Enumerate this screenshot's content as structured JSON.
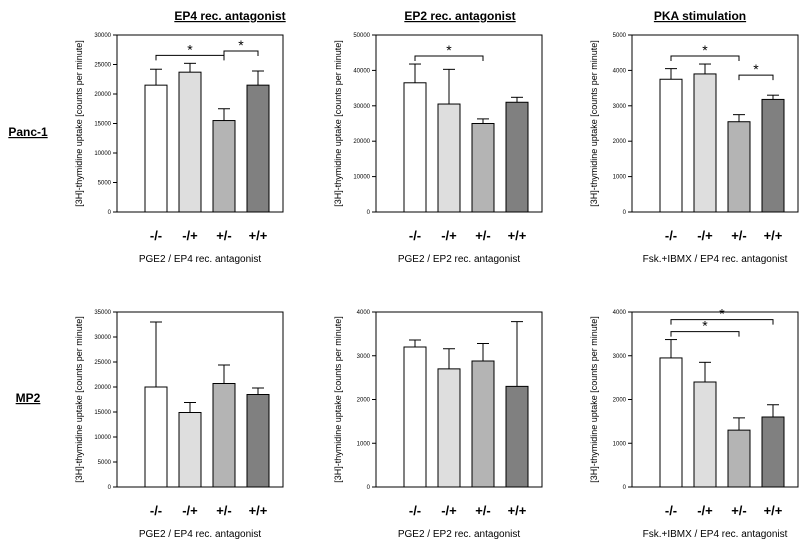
{
  "column_titles": [
    "EP4 rec. antagonist",
    "EP2 rec. antagonist",
    "PKA stimulation"
  ],
  "row_labels": [
    "Panc-1",
    "MP2"
  ],
  "chart_data": [
    {
      "type": "bar",
      "id": "panc1-ep4",
      "categories": [
        "-/-",
        "-/+",
        "+/-",
        "+/+"
      ],
      "values": [
        21500,
        23700,
        15500,
        21500
      ],
      "errors": [
        2700,
        1500,
        2000,
        2400
      ],
      "bar_colors": [
        "#ffffff",
        "#dedede",
        "#b4b4b4",
        "#808080"
      ],
      "ylabel": "[3H]-thymidine uptake [counts per minute]",
      "xlabel": "PGE2 / EP4 rec. antagonist",
      "ylim": [
        0,
        30000
      ],
      "yticks": [
        "0",
        "5000",
        "10000",
        "15000",
        "20000",
        "25000",
        "30000"
      ],
      "significance": [
        {
          "from": 0,
          "to": 2,
          "label": "*"
        },
        {
          "from": 2,
          "to": 3,
          "label": "*"
        }
      ]
    },
    {
      "type": "bar",
      "id": "panc1-ep2",
      "categories": [
        "-/-",
        "-/+",
        "+/-",
        "+/+"
      ],
      "values": [
        36500,
        30500,
        25000,
        31000
      ],
      "errors": [
        5300,
        9800,
        1300,
        1400
      ],
      "bar_colors": [
        "#ffffff",
        "#dedede",
        "#b4b4b4",
        "#808080"
      ],
      "ylabel": "[3H]-thymidine uptake [counts per minute]",
      "xlabel": "PGE2 / EP2 rec. antagonist",
      "ylim": [
        0,
        50000
      ],
      "yticks": [
        "0",
        "10000",
        "20000",
        "30000",
        "40000",
        "50000"
      ],
      "significance": [
        {
          "from": 0,
          "to": 2,
          "label": "*"
        }
      ]
    },
    {
      "type": "bar",
      "id": "panc1-pka",
      "categories": [
        "-/-",
        "-/+",
        "+/-",
        "+/+"
      ],
      "values": [
        3750,
        3900,
        2550,
        3180
      ],
      "errors": [
        300,
        280,
        200,
        120
      ],
      "bar_colors": [
        "#ffffff",
        "#dedede",
        "#b4b4b4",
        "#808080"
      ],
      "ylabel": "[3H]-thymidine uptake [counts per minute]",
      "xlabel": "Fsk.+IBMX / EP4 rec. antagonist",
      "ylim": [
        0,
        5000
      ],
      "yticks": [
        "0",
        "1000",
        "2000",
        "3000",
        "4000",
        "5000"
      ],
      "significance": [
        {
          "from": 0,
          "to": 2,
          "label": "*"
        },
        {
          "from": 2,
          "to": 3,
          "label": "*"
        }
      ]
    },
    {
      "type": "bar",
      "id": "mp2-ep4",
      "categories": [
        "-/-",
        "-/+",
        "+/-",
        "+/+"
      ],
      "values": [
        20000,
        14900,
        20700,
        18500
      ],
      "errors": [
        13000,
        2000,
        3700,
        1300
      ],
      "bar_colors": [
        "#ffffff",
        "#dedede",
        "#b4b4b4",
        "#808080"
      ],
      "ylabel": "[3H]-thymidine uptake [counts per minute]",
      "xlabel": "PGE2 / EP4 rec. antagonist",
      "ylim": [
        0,
        35000
      ],
      "yticks": [
        "0",
        "5000",
        "10000",
        "15000",
        "20000",
        "25000",
        "30000",
        "35000"
      ],
      "significance": []
    },
    {
      "type": "bar",
      "id": "mp2-ep2",
      "categories": [
        "-/-",
        "-/+",
        "+/-",
        "+/+"
      ],
      "values": [
        3200,
        2700,
        2880,
        2300
      ],
      "errors": [
        160,
        460,
        400,
        1480
      ],
      "bar_colors": [
        "#ffffff",
        "#dedede",
        "#b4b4b4",
        "#808080"
      ],
      "ylabel": "[3H]-thymidine uptake [counts per minute]",
      "xlabel": "PGE2 / EP2 rec. antagonist",
      "ylim": [
        0,
        4000
      ],
      "yticks": [
        "0",
        "1000",
        "2000",
        "3000",
        "4000"
      ],
      "significance": []
    },
    {
      "type": "bar",
      "id": "mp2-pka",
      "categories": [
        "-/-",
        "-/+",
        "+/-",
        "+/+"
      ],
      "values": [
        2950,
        2400,
        1300,
        1600
      ],
      "errors": [
        420,
        450,
        280,
        280
      ],
      "bar_colors": [
        "#ffffff",
        "#dedede",
        "#b4b4b4",
        "#808080"
      ],
      "ylabel": "[3H]-thymidine uptake [counts per minute]",
      "xlabel": "Fsk.+IBMX / EP4 rec. antagonist",
      "ylim": [
        0,
        4000
      ],
      "yticks": [
        "0",
        "1000",
        "2000",
        "3000",
        "4000"
      ],
      "significance": [
        {
          "from": 0,
          "to": 2,
          "label": "*"
        },
        {
          "from": 0,
          "to": 3,
          "label": "*"
        }
      ]
    }
  ]
}
